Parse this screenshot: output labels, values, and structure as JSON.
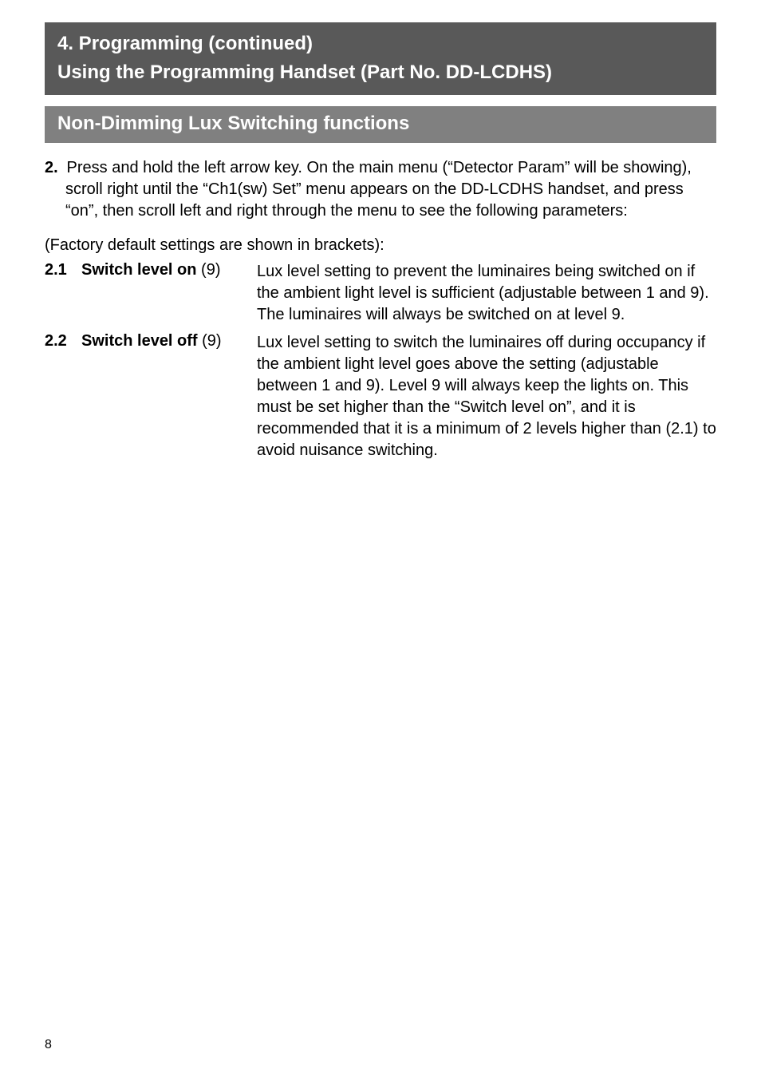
{
  "banner_dark": {
    "line1": "4. Programming (continued)",
    "line2": "Using the Programming Handset (Part No. DD-LCDHS)"
  },
  "banner_med": {
    "line": "Non-Dimming Lux Switching functions"
  },
  "intro": {
    "num": "2.",
    "text": " Press and hold the left arrow key. On the main menu (“Detector Param” will be showing), scroll right until the “Ch1(sw) Set” menu appears on the DD-LCDHS handset, and press “on”, then scroll left and right through the menu to see the following parameters:"
  },
  "factory_note": "(Factory default settings are shown in brackets):",
  "items": [
    {
      "num": "2.1",
      "label": "Switch level on",
      "paren": " (9)",
      "desc": "Lux level setting to prevent the luminaires being switched on if the ambient light level is sufficient (adjustable between 1 and 9). The luminaires will always be switched on at level 9."
    },
    {
      "num": "2.2",
      "label": "Switch level off",
      "paren": " (9)",
      "desc": "Lux level setting to switch the luminaires off during occupancy if the ambient light level goes above the setting (adjustable between 1 and 9). Level 9 will always keep the lights on. This must be set higher than the “Switch level on”, and it is recommended that it is a minimum of 2 levels higher than (2.1) to avoid nuisance switching."
    }
  ],
  "page_number": "8"
}
